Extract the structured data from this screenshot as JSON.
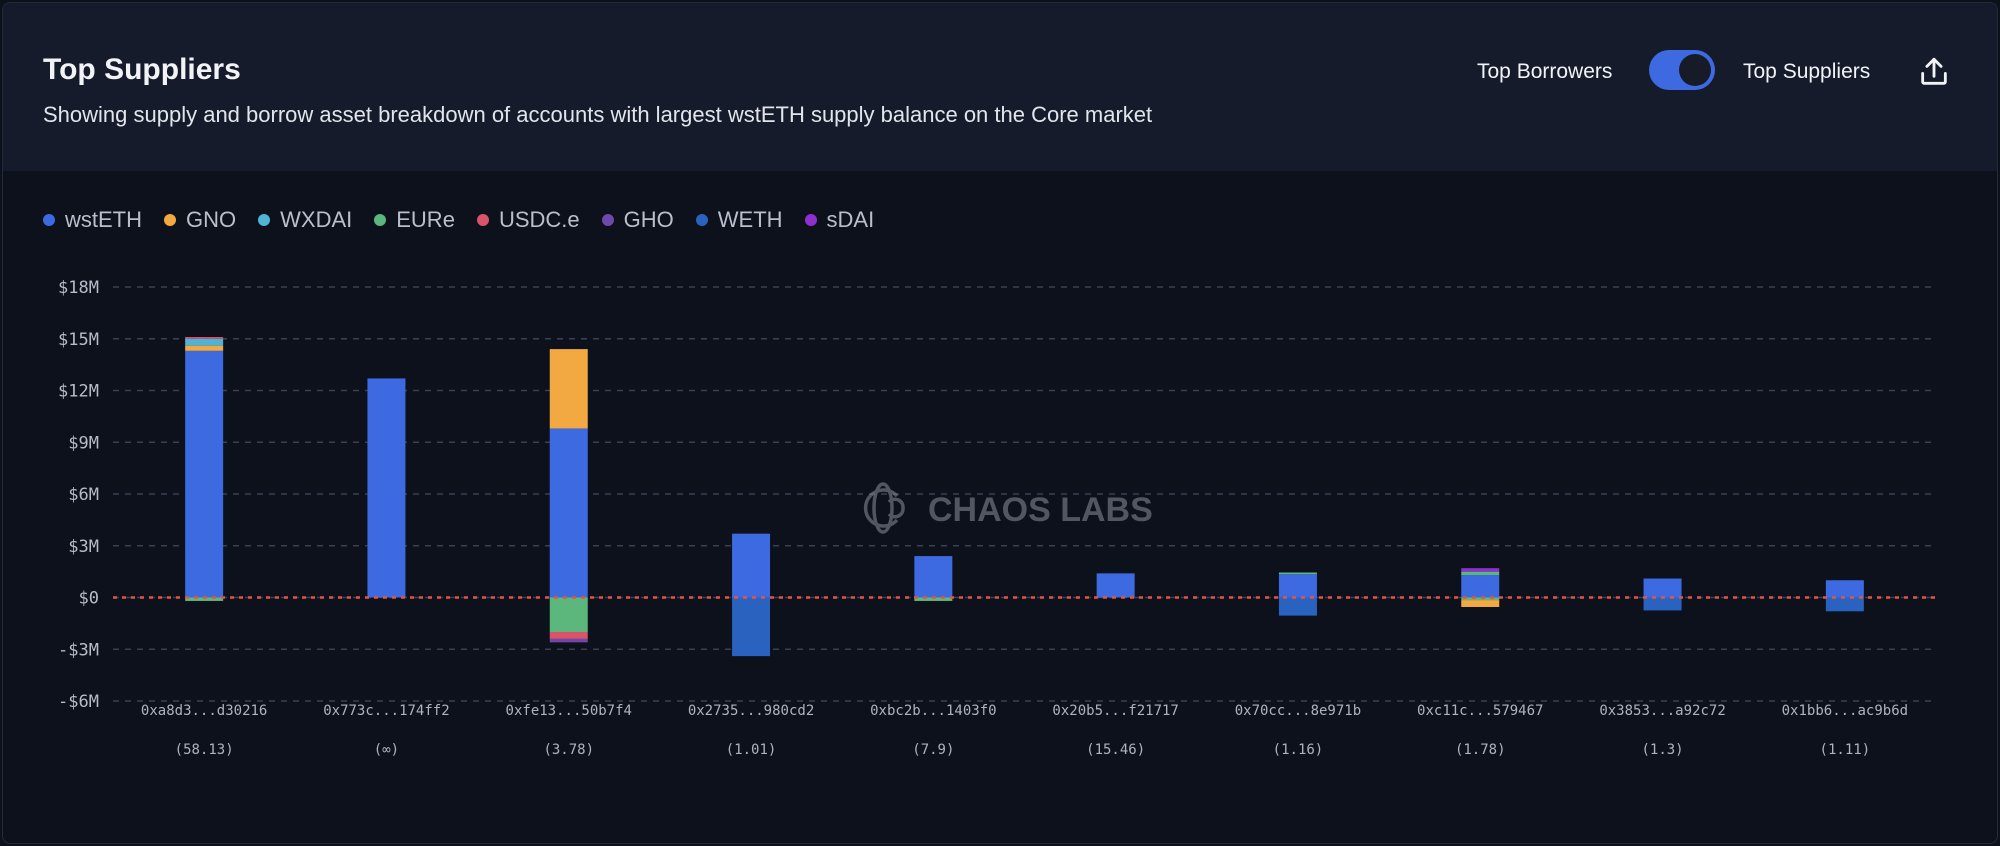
{
  "header": {
    "title": "Top Suppliers",
    "subtitle": "Showing supply and borrow asset breakdown of accounts with largest wstETH supply balance on the Core market",
    "toggle_left_label": "Top Borrowers",
    "toggle_right_label": "Top Suppliers",
    "toggle_state": "Top Suppliers",
    "export_icon": "share-upload-icon"
  },
  "watermark": "CHAOS LABS",
  "chart_data": {
    "type": "bar",
    "stacked": true,
    "title": "Top Suppliers",
    "legend_position": "top-left",
    "grid": true,
    "ylim": [
      -6,
      18
    ],
    "yticks": [
      18,
      15,
      12,
      9,
      6,
      3,
      0,
      -3,
      -6
    ],
    "ytick_labels": [
      "$18M",
      "$15M",
      "$12M",
      "$9M",
      "$6M",
      "$3M",
      "$0",
      "-$3M",
      "-$6M"
    ],
    "units": "USD millions",
    "series_meta": [
      {
        "name": "wstETH",
        "color": "#3d6ae0"
      },
      {
        "name": "GNO",
        "color": "#f2a941"
      },
      {
        "name": "WXDAI",
        "color": "#4fb3d6"
      },
      {
        "name": "EURe",
        "color": "#5bb77b"
      },
      {
        "name": "USDC.e",
        "color": "#d9536a"
      },
      {
        "name": "GHO",
        "color": "#6f48a8"
      },
      {
        "name": "WETH",
        "color": "#2a62c0"
      },
      {
        "name": "sDAI",
        "color": "#8f2fd0"
      }
    ],
    "categories": [
      "0xa8d3...d30216",
      "0x773c...174ff2",
      "0xfe13...50b7f4",
      "0x2735...980cd2",
      "0xbc2b...1403f0",
      "0x20b5...f21717",
      "0x70cc...8e971b",
      "0xc11c...579467",
      "0x3853...a92c72",
      "0x1bb6...ac9b6d"
    ],
    "health_factors": [
      "(58.13)",
      "(∞)",
      "(3.78)",
      "(1.01)",
      "(7.9)",
      "(15.46)",
      "(1.16)",
      "(1.78)",
      "(1.3)",
      "(1.11)"
    ],
    "supply": [
      [
        {
          "s": "wstETH",
          "v": 14.3
        },
        {
          "s": "GNO",
          "v": 0.3
        },
        {
          "s": "WXDAI",
          "v": 0.4
        },
        {
          "s": "USDC.e",
          "v": 0.1
        }
      ],
      [
        {
          "s": "wstETH",
          "v": 12.7
        }
      ],
      [
        {
          "s": "wstETH",
          "v": 9.8
        },
        {
          "s": "GNO",
          "v": 4.6
        }
      ],
      [
        {
          "s": "wstETH",
          "v": 3.7
        }
      ],
      [
        {
          "s": "wstETH",
          "v": 2.4
        }
      ],
      [
        {
          "s": "wstETH",
          "v": 1.4
        }
      ],
      [
        {
          "s": "wstETH",
          "v": 1.35
        },
        {
          "s": "EURe",
          "v": 0.1
        }
      ],
      [
        {
          "s": "wstETH",
          "v": 1.3
        },
        {
          "s": "EURe",
          "v": 0.2
        },
        {
          "s": "sDAI",
          "v": 0.2
        }
      ],
      [
        {
          "s": "wstETH",
          "v": 1.1
        }
      ],
      [
        {
          "s": "wstETH",
          "v": 1.0
        }
      ]
    ],
    "borrow": [
      [
        {
          "s": "EURe",
          "v": -0.2
        }
      ],
      [],
      [
        {
          "s": "EURe",
          "v": -2.0
        },
        {
          "s": "USDC.e",
          "v": -0.4
        },
        {
          "s": "GHO",
          "v": -0.2
        }
      ],
      [
        {
          "s": "WETH",
          "v": -3.4
        }
      ],
      [
        {
          "s": "EURe",
          "v": -0.2
        }
      ],
      [],
      [
        {
          "s": "WETH",
          "v": -1.05
        }
      ],
      [
        {
          "s": "EURe",
          "v": -0.15
        },
        {
          "s": "GNO",
          "v": -0.4
        }
      ],
      [
        {
          "s": "WETH",
          "v": -0.75
        }
      ],
      [
        {
          "s": "WETH",
          "v": -0.8
        }
      ]
    ]
  }
}
